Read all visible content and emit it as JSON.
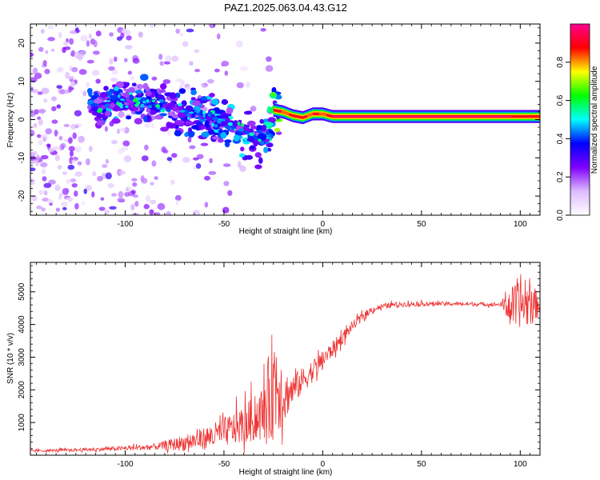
{
  "page": {
    "title": "PAZ1.2025.063.04.43.G12"
  },
  "chart_data": [
    {
      "type": "heatmap",
      "title": "PAZ1.2025.063.04.43.G12",
      "xlabel": "Height of straight line (km)",
      "ylabel": "Frequency (Hz)",
      "xlim": [
        -148,
        110
      ],
      "ylim": [
        -25,
        25
      ],
      "xticks": [
        -100,
        -50,
        0,
        50,
        100
      ],
      "yticks": [
        -20,
        -10,
        0,
        10,
        20
      ],
      "colorbar": {
        "label": "Normalized spectral amplitude",
        "range": [
          0,
          1
        ],
        "ticks": [
          0.0,
          0.2,
          0.4,
          0.6,
          0.8
        ],
        "colors": [
          "#ffffff",
          "#ddbbff",
          "#8000ff",
          "#0000ff",
          "#00ffff",
          "#00ff00",
          "#ffff00",
          "#ff0000",
          "#ff0090"
        ]
      },
      "ridge": {
        "x": [
          -115,
          -105,
          -95,
          -85,
          -75,
          -65,
          -55,
          -45,
          -38,
          -32,
          -27,
          -25,
          -20,
          -15,
          -10,
          -5,
          0,
          5,
          20,
          50,
          80,
          100,
          110
        ],
        "y": [
          3.5,
          4.5,
          5,
          4,
          3,
          2,
          0,
          -2,
          -4,
          -5,
          -3,
          2.5,
          2,
          1,
          0.5,
          1.5,
          1.5,
          0.8,
          0.8,
          0.8,
          0.8,
          0.8,
          0.8
        ],
        "amplitude": [
          0.35,
          0.4,
          0.35,
          0.3,
          0.3,
          0.35,
          0.4,
          0.45,
          0.4,
          0.35,
          0.5,
          0.7,
          0.75,
          0.85,
          0.8,
          0.9,
          0.9,
          0.95,
          0.95,
          0.98,
          0.98,
          0.95,
          0.9
        ]
      }
    },
    {
      "type": "line",
      "xlabel": "Height of straight line (km)",
      "ylabel": "SNR (10 * v/v)",
      "xlim": [
        -148,
        110
      ],
      "ylim": [
        0,
        5900
      ],
      "xticks": [
        -100,
        -50,
        0,
        50,
        100
      ],
      "yticks": [
        1000,
        2000,
        3000,
        4000,
        5000
      ],
      "color": "#ee3333",
      "x": [
        -148,
        -140,
        -130,
        -120,
        -110,
        -100,
        -90,
        -85,
        -80,
        -75,
        -70,
        -65,
        -60,
        -55,
        -50,
        -45,
        -40,
        -35,
        -30,
        -27,
        -25,
        -22,
        -20,
        -15,
        -10,
        -5,
        0,
        5,
        10,
        15,
        20,
        25,
        30,
        35,
        40,
        50,
        60,
        70,
        80,
        90,
        93,
        95,
        100,
        105,
        110
      ],
      "y": [
        130,
        140,
        150,
        170,
        190,
        210,
        240,
        260,
        290,
        330,
        380,
        440,
        510,
        600,
        700,
        820,
        950,
        1100,
        1300,
        1700,
        2300,
        2200,
        1800,
        2000,
        2300,
        2600,
        2900,
        3250,
        3600,
        3950,
        4250,
        4450,
        4550,
        4600,
        4620,
        4630,
        4640,
        4630,
        4620,
        4610,
        4600,
        4550,
        4600,
        4620,
        4600
      ],
      "noise": [
        40,
        40,
        45,
        50,
        60,
        70,
        90,
        100,
        150,
        200,
        250,
        300,
        350,
        400,
        450,
        500,
        600,
        700,
        900,
        1500,
        1800,
        1500,
        800,
        500,
        400,
        350,
        300,
        250,
        200,
        150,
        120,
        100,
        90,
        80,
        80,
        70,
        60,
        60,
        60,
        60,
        400,
        600,
        700,
        700,
        300
      ]
    }
  ]
}
